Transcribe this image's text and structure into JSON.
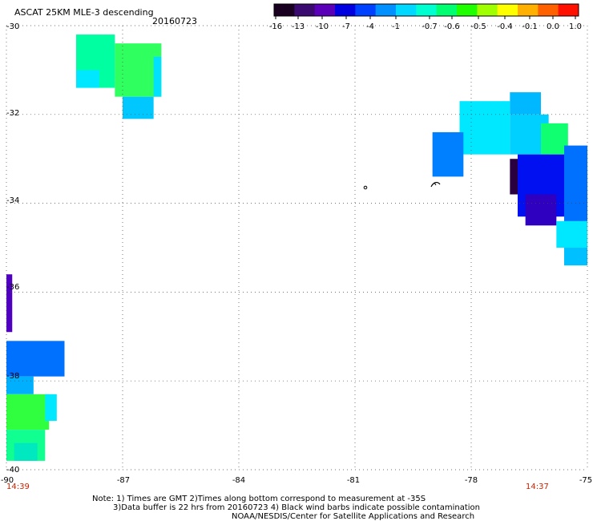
{
  "header": {
    "title": "ASCAT 25KM MLE-3 descending",
    "date": "20160723"
  },
  "colorbar": {
    "labels": [
      "-16",
      "-13",
      "-10",
      "-7",
      "-4",
      "-1",
      "-0.7",
      "-0.6",
      "-0.5",
      "-0.4",
      "-0.1",
      "0.0",
      "1.0"
    ],
    "colors": [
      "#1a0020",
      "#3a0a70",
      "#5a00b8",
      "#0000e0",
      "#0040ff",
      "#0090ff",
      "#00d8ff",
      "#00ffd0",
      "#00ff70",
      "#20ff00",
      "#a0ff00",
      "#ffff00",
      "#ffb000",
      "#ff6000",
      "#ff1000"
    ]
  },
  "map": {
    "lon_range": [
      -90,
      -75
    ],
    "lat_range": [
      -40,
      -30
    ],
    "lon_ticks": [
      "-90",
      "-87",
      "-84",
      "-81",
      "-78",
      "-75"
    ],
    "lat_ticks": [
      "-30",
      "-32",
      "-34",
      "-36",
      "-38",
      "-40"
    ],
    "lat_tick_values": [
      -30,
      -32,
      -34,
      -36,
      -38,
      -40
    ],
    "lon_tick_values": [
      -90,
      -87,
      -84,
      -81,
      -78,
      -75
    ],
    "swath_cells": [
      {
        "lon0": -88.2,
        "lat0": -30.2,
        "lon1": -87.2,
        "lat1": -31.4,
        "color": "#00ffa0"
      },
      {
        "lon0": -87.2,
        "lat0": -30.4,
        "lon1": -86.0,
        "lat1": -31.6,
        "color": "#30ff60"
      },
      {
        "lon0": -88.2,
        "lat0": -31.0,
        "lon1": -87.6,
        "lat1": -31.4,
        "color": "#00e8ff"
      },
      {
        "lon0": -87.0,
        "lat0": -31.6,
        "lon1": -86.2,
        "lat1": -32.1,
        "color": "#00c8ff"
      },
      {
        "lon0": -86.2,
        "lat0": -30.7,
        "lon1": -86.0,
        "lat1": -31.6,
        "color": "#00e0ff"
      },
      {
        "lon0": -78.3,
        "lat0": -31.7,
        "lon1": -77.0,
        "lat1": -32.9,
        "color": "#00e8ff"
      },
      {
        "lon0": -77.0,
        "lat0": -31.5,
        "lon1": -76.2,
        "lat1": -32.0,
        "color": "#00b8ff"
      },
      {
        "lon0": -77.0,
        "lat0": -32.0,
        "lon1": -76.0,
        "lat1": -32.9,
        "color": "#00d0ff"
      },
      {
        "lon0": -79.0,
        "lat0": -32.4,
        "lon1": -78.2,
        "lat1": -33.4,
        "color": "#0080ff"
      },
      {
        "lon0": -76.2,
        "lat0": -32.2,
        "lon1": -75.5,
        "lat1": -32.9,
        "color": "#10ff70"
      },
      {
        "lon0": -76.8,
        "lat0": -32.9,
        "lon1": -75.6,
        "lat1": -34.3,
        "color": "#0010f0"
      },
      {
        "lon0": -75.6,
        "lat0": -32.7,
        "lon1": -75.0,
        "lat1": -34.6,
        "color": "#0070ff"
      },
      {
        "lon0": -77.0,
        "lat0": -33.0,
        "lon1": -76.8,
        "lat1": -33.8,
        "color": "#2a0040"
      },
      {
        "lon0": -76.6,
        "lat0": -33.8,
        "lon1": -75.8,
        "lat1": -34.5,
        "color": "#3000c0"
      },
      {
        "lon0": -75.8,
        "lat0": -34.4,
        "lon1": -75.0,
        "lat1": -35.0,
        "color": "#00e8ff"
      },
      {
        "lon0": -75.6,
        "lat0": -35.0,
        "lon1": -75.0,
        "lat1": -35.4,
        "color": "#00c0ff"
      },
      {
        "lon0": -90.0,
        "lat0": -35.6,
        "lon1": -89.85,
        "lat1": -36.9,
        "color": "#5000c0"
      },
      {
        "lon0": -90.0,
        "lat0": -37.1,
        "lon1": -88.5,
        "lat1": -37.9,
        "color": "#0070ff"
      },
      {
        "lon0": -90.0,
        "lat0": -37.9,
        "lon1": -89.3,
        "lat1": -38.3,
        "color": "#00b0ff"
      },
      {
        "lon0": -90.0,
        "lat0": -38.3,
        "lon1": -88.9,
        "lat1": -39.1,
        "color": "#30ff40"
      },
      {
        "lon0": -89.0,
        "lat0": -38.3,
        "lon1": -88.7,
        "lat1": -38.9,
        "color": "#00e8ff"
      },
      {
        "lon0": -90.0,
        "lat0": -39.1,
        "lon1": -89.0,
        "lat1": -39.8,
        "color": "#10ff90"
      },
      {
        "lon0": -89.8,
        "lat0": -39.4,
        "lon1": -89.2,
        "lat1": -39.8,
        "color": "#00e8c0"
      }
    ]
  },
  "times": {
    "left": "14:39",
    "right": "14:37"
  },
  "notes": {
    "line1": "Note: 1) Times are GMT 2)Times along bottom correspond to measurement at -35S",
    "line2": "3)Data buffer is 22 hrs from 20160723 4) Black wind barbs indicate possible contamination",
    "line3": "NOAA/NESDIS/Center for Satellite Applications and Research"
  }
}
